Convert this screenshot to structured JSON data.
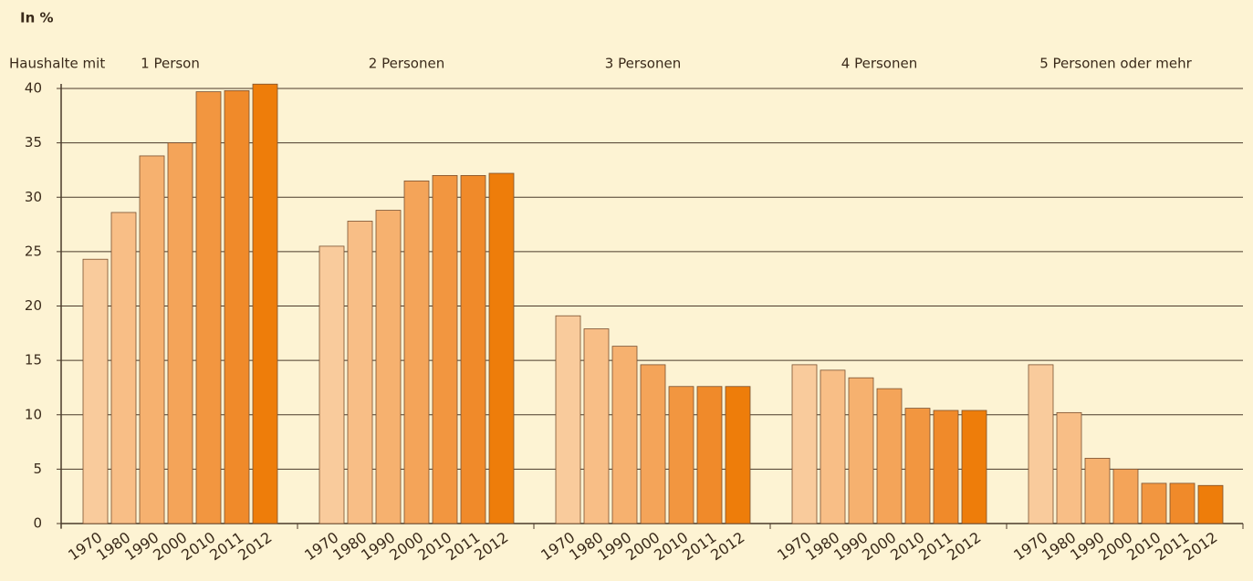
{
  "chart_data": {
    "type": "bar",
    "y_label": "In %",
    "category_label": "Haushalte mit",
    "categories": [
      "1 Person",
      "2 Personen",
      "3 Personen",
      "4 Personen",
      "5 Personen oder mehr"
    ],
    "series": [
      {
        "name": "1970",
        "color": "#f9cb9c",
        "values": [
          24.3,
          25.5,
          19.1,
          14.6,
          14.6
        ]
      },
      {
        "name": "1980",
        "color": "#f8be86",
        "values": [
          28.6,
          27.8,
          17.9,
          14.1,
          10.2
        ]
      },
      {
        "name": "1990",
        "color": "#f6b16f",
        "values": [
          33.8,
          28.8,
          16.3,
          13.4,
          6.0
        ]
      },
      {
        "name": "2000",
        "color": "#f4a459",
        "values": [
          35.0,
          31.5,
          14.6,
          12.4,
          5.0
        ]
      },
      {
        "name": "2010",
        "color": "#f29640",
        "values": [
          39.7,
          32.0,
          12.6,
          10.6,
          3.7
        ]
      },
      {
        "name": "2011",
        "color": "#f08a2a",
        "values": [
          39.8,
          32.0,
          12.6,
          10.4,
          3.7
        ]
      },
      {
        "name": "2012",
        "color": "#ee7d0a",
        "values": [
          40.4,
          32.2,
          12.6,
          10.4,
          3.5
        ]
      }
    ],
    "ylim": [
      0,
      40
    ],
    "yticks": [
      0,
      5,
      10,
      15,
      20,
      25,
      30,
      35,
      40
    ],
    "grid": true
  }
}
